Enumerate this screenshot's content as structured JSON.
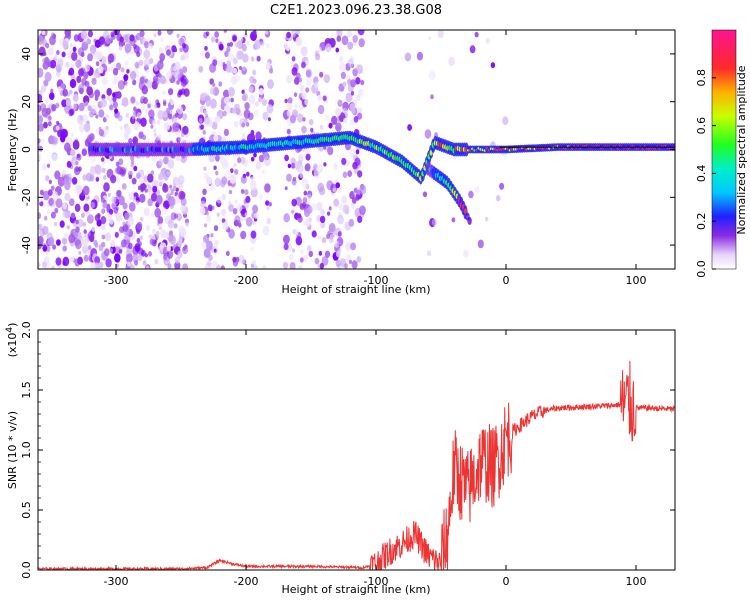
{
  "title": "C2E1.2023.096.23.38.G08",
  "chart_data": [
    {
      "type": "heatmap",
      "title": "",
      "xlabel": "Height of straight line (km)",
      "ylabel": "Frequency (Hz)",
      "xlim": [
        -360,
        130
      ],
      "ylim": [
        -50,
        50
      ],
      "xticks": [
        "-300",
        "-200",
        "-100",
        "0",
        "100"
      ],
      "yticks": [
        "-40",
        "-20",
        "0",
        "20",
        "40"
      ],
      "colorbar": {
        "label": "Normalized spectral amplitude",
        "range": [
          0.0,
          1.0
        ],
        "ticks": [
          "0.0",
          "0.2",
          "0.4",
          "0.6",
          "0.8"
        ],
        "colormap": "rainbow (white - violet - blue - cyan - green - yellow - orange - red - magenta)"
      },
      "series": [
        {
          "description": "main carrier trace",
          "points": [
            {
              "x": -320,
              "y": 0
            },
            {
              "x": -280,
              "y": 0
            },
            {
              "x": -245,
              "y": 0
            },
            {
              "x": -200,
              "y": 1
            },
            {
              "x": -160,
              "y": 3
            },
            {
              "x": -120,
              "y": 5
            },
            {
              "x": -100,
              "y": 1
            },
            {
              "x": -80,
              "y": -5
            },
            {
              "x": -65,
              "y": -12
            },
            {
              "x": -55,
              "y": 3
            },
            {
              "x": -40,
              "y": 0
            },
            {
              "x": -20,
              "y": 0
            },
            {
              "x": 0,
              "y": 0
            },
            {
              "x": 40,
              "y": 1
            },
            {
              "x": 80,
              "y": 1
            },
            {
              "x": 130,
              "y": 1
            }
          ]
        },
        {
          "description": "lower branch",
          "points": [
            {
              "x": -60,
              "y": -8
            },
            {
              "x": -45,
              "y": -14
            },
            {
              "x": -35,
              "y": -22
            },
            {
              "x": -27,
              "y": -31
            }
          ]
        }
      ]
    },
    {
      "type": "line",
      "title": "",
      "xlabel": "Height of straight line (km)",
      "ylabel": "SNR (10 * v/v)",
      "y_multiplier": "(x10",
      "y_multiplier_exp": "4",
      "y_multiplier_close": ")",
      "xlim": [
        -360,
        130
      ],
      "ylim": [
        0,
        2.0
      ],
      "xticks": [
        "-300",
        "-200",
        "-100",
        "0",
        "100"
      ],
      "yticks": [
        "0.0",
        "0.5",
        "1.0",
        "1.5",
        "2.0"
      ],
      "color": "#ee3333",
      "series": [
        {
          "x": [
            -360,
            -300,
            -250,
            -230,
            -220,
            -210,
            -200,
            -150,
            -110,
            -100,
            -90,
            -80,
            -70,
            -60,
            -50,
            -45,
            -40,
            -35,
            -30,
            -25,
            -20,
            -15,
            -10,
            -5,
            0,
            10,
            20,
            30,
            40,
            60,
            80,
            90,
            95,
            97,
            100,
            110,
            130
          ],
          "y": [
            0.01,
            0.01,
            0.01,
            0.02,
            0.08,
            0.05,
            0.03,
            0.03,
            0.02,
            0.05,
            0.15,
            0.22,
            0.3,
            0.12,
            0.05,
            0.3,
            0.85,
            0.75,
            0.65,
            0.75,
            0.9,
            0.9,
            0.85,
            0.95,
            1.1,
            1.2,
            1.28,
            1.33,
            1.35,
            1.36,
            1.37,
            1.38,
            1.4,
            1.36,
            1.35,
            1.35,
            1.34
          ]
        }
      ]
    }
  ]
}
